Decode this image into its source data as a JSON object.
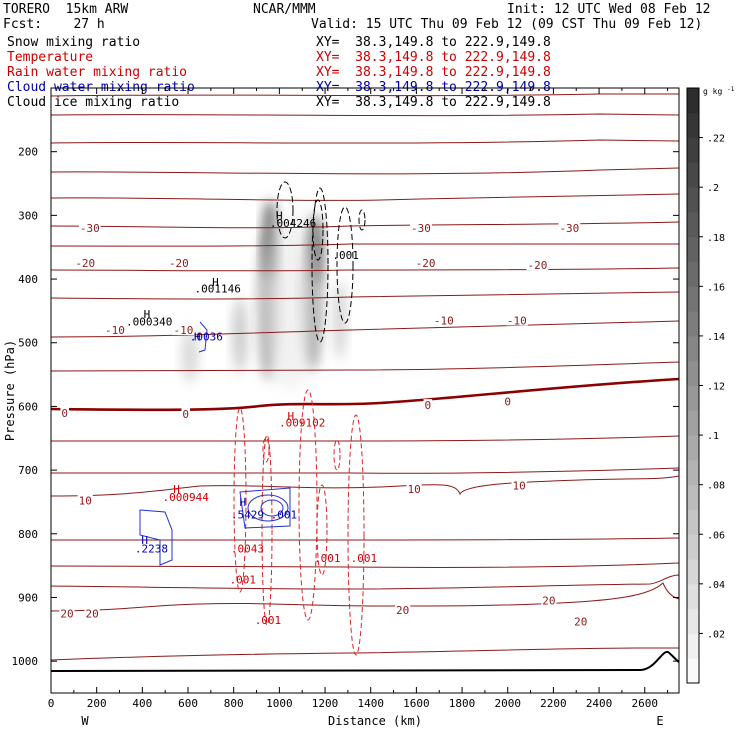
{
  "header": {
    "model": "TORERO  15km ARW",
    "center": "NCAR/MMM",
    "init": "Init: 12 UTC Wed 08 Feb 12",
    "fcst": "Fcst:    27 h",
    "valid": "Valid: 15 UTC Thu 09 Feb 12 (09 CST Thu 09 Feb 12)"
  },
  "fields": [
    {
      "name": "Snow mixing ratio",
      "xy": "XY=  38.3,149.8 to 222.9,149.8",
      "color": "#000000",
      "xycolor": "#000000"
    },
    {
      "name": "Temperature",
      "xy": "XY=  38.3,149.8 to 222.9,149.8",
      "color": "#cc0000",
      "xycolor": "#cc0000"
    },
    {
      "name": "Rain water mixing ratio",
      "xy": "XY=  38.3,149.8 to 222.9,149.8",
      "color": "#cc0000",
      "xycolor": "#cc0000"
    },
    {
      "name": "Cloud water mixing ratio",
      "xy": "XY=  38.3,149.8 to 222.9,149.8",
      "color": "#0000aa",
      "xycolor": "#0000aa"
    },
    {
      "name": "Cloud ice mixing ratio",
      "xy": "XY=  38.3,149.8 to 222.9,149.8",
      "color": "#000000",
      "xycolor": "#000000"
    }
  ],
  "chart_data": {
    "type": "contour",
    "xlabel": "Distance (km)",
    "ylabel": "Pressure (hPa)",
    "xlim": [
      0,
      2750
    ],
    "ylim": [
      1050,
      100
    ],
    "x_ticks": [
      0,
      200,
      400,
      600,
      800,
      1000,
      1200,
      1400,
      1600,
      1800,
      2000,
      2200,
      2400,
      2600
    ],
    "y_ticks": [
      200,
      300,
      400,
      500,
      600,
      700,
      800,
      900,
      1000
    ],
    "x_tick_labels": [
      "0",
      "200",
      "400",
      "600",
      "800",
      "1000",
      "1200",
      "1400",
      "1600",
      "1800",
      "2000",
      "2200",
      "2400",
      "2600"
    ],
    "y_tick_labels": [
      "200",
      "300",
      "400",
      "500",
      "600",
      "700",
      "800",
      "900",
      "1000"
    ],
    "west_label": "W",
    "east_label": "E",
    "colorbar": {
      "unit": "g kg",
      "unit_exp": "-1",
      "ticks": [
        0.02,
        0.04,
        0.06,
        0.08,
        0.1,
        0.12,
        0.14,
        0.16,
        0.18,
        0.2,
        0.22
      ],
      "tick_labels": [
        ".02",
        ".04",
        ".06",
        ".08",
        ".1",
        ".12",
        ".14",
        ".16",
        ".18",
        ".2",
        ".22"
      ],
      "range": [
        0,
        0.24
      ]
    },
    "isotherm_labels": [
      {
        "text": "-30",
        "x": 170,
        "p": 320
      },
      {
        "text": "-30",
        "x": 1620,
        "p": 320
      },
      {
        "text": "-30",
        "x": 2270,
        "p": 320
      },
      {
        "text": "-20",
        "x": 150,
        "p": 375
      },
      {
        "text": "-20",
        "x": 560,
        "p": 375
      },
      {
        "text": "-20",
        "x": 1640,
        "p": 375
      },
      {
        "text": "-20",
        "x": 2130,
        "p": 378
      },
      {
        "text": "-10",
        "x": 280,
        "p": 480
      },
      {
        "text": "-10",
        "x": 580,
        "p": 480
      },
      {
        "text": "-10",
        "x": 1720,
        "p": 465
      },
      {
        "text": "-10",
        "x": 2040,
        "p": 465
      },
      {
        "text": "0",
        "x": 60,
        "p": 610
      },
      {
        "text": "0",
        "x": 590,
        "p": 612
      },
      {
        "text": "0",
        "x": 1650,
        "p": 598
      },
      {
        "text": "0",
        "x": 2000,
        "p": 592
      },
      {
        "text": "10",
        "x": 150,
        "p": 748
      },
      {
        "text": "10",
        "x": 1590,
        "p": 730
      },
      {
        "text": "10",
        "x": 2050,
        "p": 724
      },
      {
        "text": "20",
        "x": 70,
        "p": 925
      },
      {
        "text": "20",
        "x": 180,
        "p": 925
      },
      {
        "text": "20",
        "x": 1540,
        "p": 920
      },
      {
        "text": "20",
        "x": 2180,
        "p": 905
      },
      {
        "text": "20",
        "x": 2320,
        "p": 938
      }
    ],
    "maxima": [
      {
        "text": ".004246",
        "x": 1060,
        "p": 312,
        "color": "#000000"
      },
      {
        "text": ".001146",
        "x": 730,
        "p": 415,
        "color": "#000000"
      },
      {
        "text": ".000340",
        "x": 430,
        "p": 467,
        "color": "#000000"
      },
      {
        "text": ".0036",
        "x": 680,
        "p": 490,
        "color": "#0000aa"
      },
      {
        "text": ".009102",
        "x": 1100,
        "p": 625,
        "color": "#cc0000"
      },
      {
        "text": ".000944",
        "x": 590,
        "p": 742,
        "color": "#cc0000"
      },
      {
        "text": ".5429",
        "x": 860,
        "p": 770,
        "color": "#0000aa"
      },
      {
        "text": ".2238",
        "x": 440,
        "p": 823,
        "color": "#0000aa"
      }
    ],
    "contour_labels": [
      {
        "text": ".001",
        "x": 1290,
        "p": 362,
        "color": "#000000"
      },
      {
        "text": ".0043",
        "x": 860,
        "p": 823,
        "color": "#cc0000"
      },
      {
        "text": ".001",
        "x": 1210,
        "p": 838,
        "color": "#cc0000"
      },
      {
        "text": ".001",
        "x": 1370,
        "p": 838,
        "color": "#cc0000"
      },
      {
        "text": ".001",
        "x": 840,
        "p": 872,
        "color": "#cc0000"
      },
      {
        "text": ".001",
        "x": 950,
        "p": 935,
        "color": "#cc0000"
      },
      {
        "text": ".001",
        "x": 1020,
        "p": 770,
        "color": "#0000aa"
      }
    ],
    "high_markers": [
      {
        "x": 1000,
        "p": 300,
        "color": "#000000"
      },
      {
        "x": 720,
        "p": 405,
        "color": "#000000"
      },
      {
        "x": 420,
        "p": 455,
        "color": "#000000"
      },
      {
        "x": 640,
        "p": 490,
        "color": "#0000aa"
      },
      {
        "x": 1050,
        "p": 615,
        "color": "#cc0000"
      },
      {
        "x": 550,
        "p": 730,
        "color": "#cc0000"
      },
      {
        "x": 840,
        "p": 750,
        "color": "#0000aa"
      },
      {
        "x": 410,
        "p": 810,
        "color": "#0000aa"
      }
    ]
  }
}
